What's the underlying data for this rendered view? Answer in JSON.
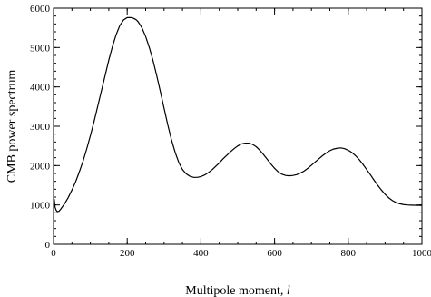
{
  "chart_data": {
    "type": "line",
    "title": "",
    "xlabel": "Multipole moment, ",
    "xlabel_italic": "l",
    "ylabel": "CMB power spectrum",
    "xlim": [
      0,
      1000
    ],
    "ylim": [
      0,
      6000
    ],
    "x_ticks": [
      "0",
      "200",
      "400",
      "600",
      "800",
      "1000"
    ],
    "y_ticks": [
      "0",
      "1000",
      "2000",
      "3000",
      "4000",
      "5000",
      "6000"
    ],
    "x_minor_step": 50,
    "y_minor_step": 200,
    "grid": false,
    "legend": "none",
    "line_color": "#000000",
    "series": [
      {
        "x": [
          2,
          4,
          7,
          10,
          15,
          20,
          30,
          40,
          50,
          60,
          70,
          80,
          90,
          100,
          110,
          120,
          130,
          140,
          150,
          160,
          170,
          180,
          190,
          200,
          210,
          215,
          220,
          225,
          230,
          240,
          250,
          260,
          270,
          280,
          290,
          300,
          310,
          320,
          330,
          340,
          350,
          360,
          370,
          380,
          390,
          400,
          410,
          420,
          430,
          440,
          450,
          460,
          470,
          480,
          490,
          500,
          510,
          520,
          530,
          540,
          550,
          560,
          570,
          580,
          590,
          600,
          610,
          620,
          630,
          640,
          650,
          660,
          670,
          680,
          690,
          700,
          710,
          720,
          730,
          740,
          750,
          760,
          770,
          780,
          790,
          800,
          810,
          820,
          830,
          840,
          850,
          860,
          870,
          880,
          890,
          900,
          910,
          920,
          930,
          940,
          950,
          960,
          970,
          980,
          990,
          1000
        ],
        "y": [
          1150,
          950,
          870,
          830,
          840,
          900,
          1030,
          1190,
          1380,
          1590,
          1840,
          2110,
          2420,
          2760,
          3120,
          3510,
          3900,
          4290,
          4680,
          5030,
          5330,
          5560,
          5700,
          5760,
          5760,
          5750,
          5730,
          5700,
          5650,
          5500,
          5280,
          5000,
          4670,
          4290,
          3880,
          3460,
          3040,
          2660,
          2340,
          2080,
          1900,
          1790,
          1730,
          1700,
          1700,
          1720,
          1760,
          1820,
          1890,
          1980,
          2070,
          2170,
          2260,
          2350,
          2430,
          2500,
          2550,
          2570,
          2570,
          2540,
          2480,
          2390,
          2280,
          2160,
          2040,
          1930,
          1840,
          1780,
          1750,
          1740,
          1750,
          1770,
          1810,
          1860,
          1930,
          2010,
          2090,
          2170,
          2250,
          2320,
          2380,
          2420,
          2440,
          2450,
          2430,
          2390,
          2330,
          2250,
          2150,
          2030,
          1900,
          1770,
          1630,
          1500,
          1380,
          1270,
          1180,
          1110,
          1060,
          1030,
          1010,
          1000,
          995,
          992,
          990,
          990
        ]
      }
    ]
  }
}
